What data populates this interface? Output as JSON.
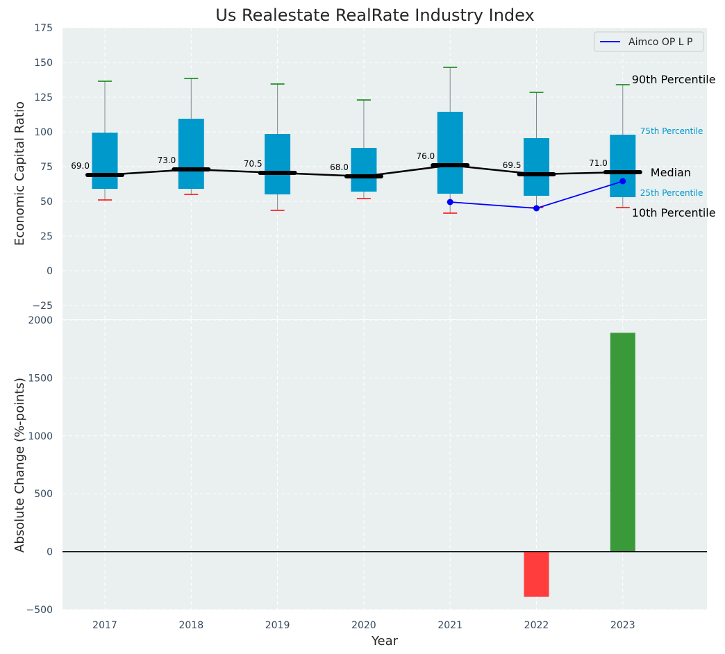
{
  "title": "Us Realestate RealRate Industry Index",
  "colors": {
    "panel_bg": "#eaeff0",
    "box": "#0099cc",
    "median": "#000000",
    "whisker_high": "#008000",
    "whisker_low": "#ff0000",
    "company": "#0000ff",
    "bar_pos": "#3a9a3a",
    "bar_neg": "#ff3d3d"
  },
  "chart_data": [
    {
      "type": "box",
      "ylabel": "Economic Capital Ratio",
      "ylim": [
        -35,
        175
      ],
      "yticks": [
        -25,
        0,
        25,
        50,
        75,
        100,
        125,
        150,
        175
      ],
      "ytick_labels": [
        "−25",
        "0",
        "25",
        "50",
        "75",
        "100",
        "125",
        "150",
        "175"
      ],
      "grid": true,
      "categories": [
        "2017",
        "2018",
        "2019",
        "2020",
        "2021",
        "2022",
        "2023"
      ],
      "p10": [
        51,
        55,
        43.5,
        52,
        41.5,
        45.5,
        45.5
      ],
      "p25": [
        59,
        59,
        55,
        57,
        55.5,
        54,
        53
      ],
      "median": [
        69.0,
        73.0,
        70.5,
        68.0,
        76.0,
        69.5,
        71.0
      ],
      "median_labels": [
        "69.0",
        "73.0",
        "70.5",
        "68.0",
        "76.0",
        "69.5",
        "71.0"
      ],
      "p75": [
        99.5,
        109.5,
        98.5,
        88.5,
        114.5,
        95.5,
        98
      ],
      "p90": [
        136.5,
        138.5,
        134.5,
        123,
        146.5,
        128.5,
        134
      ],
      "series": [
        {
          "name": "Aimco OP L P",
          "x": [
            "2021",
            "2022",
            "2023"
          ],
          "values": [
            49.5,
            45,
            64.5
          ]
        }
      ],
      "legend": {
        "position": "top-right",
        "entries": [
          "Aimco OP L P"
        ]
      },
      "annotations": {
        "p90": "90th Percentile",
        "p75": "75th Percentile",
        "median": "Median",
        "p25": "25th Percentile",
        "p10": "10th Percentile"
      }
    },
    {
      "type": "bar",
      "xlabel": "Year",
      "ylabel": "Absolute Change (%-points)",
      "ylim": [
        -500,
        2000
      ],
      "yticks": [
        -500,
        0,
        500,
        1000,
        1500,
        2000
      ],
      "ytick_labels": [
        "−500",
        "0",
        "500",
        "1000",
        "1500",
        "2000"
      ],
      "grid": true,
      "categories": [
        "2017",
        "2018",
        "2019",
        "2020",
        "2021",
        "2022",
        "2023"
      ],
      "values": [
        null,
        null,
        null,
        null,
        null,
        -390,
        1890
      ]
    }
  ]
}
